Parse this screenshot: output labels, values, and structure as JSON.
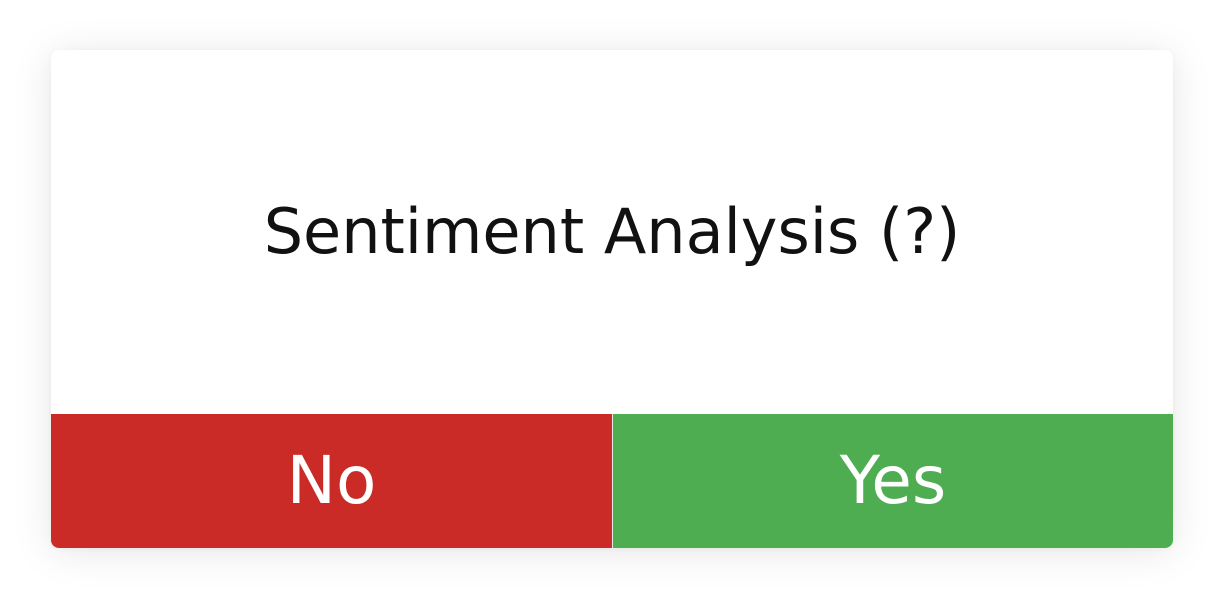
{
  "dialog": {
    "title": "Sentiment Analysis (?)",
    "buttons": {
      "no_label": "No",
      "yes_label": "Yes"
    }
  },
  "colors": {
    "background": "#ffffff",
    "no_button": "#cb2b27",
    "yes_button": "#4fad51",
    "text_dark": "#111111",
    "text_light": "#ffffff"
  }
}
